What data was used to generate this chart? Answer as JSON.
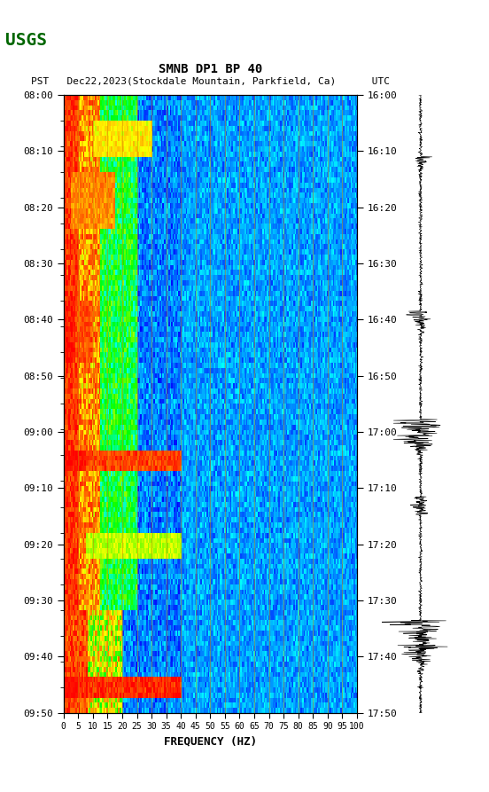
{
  "title_line1": "SMNB DP1 BP 40",
  "title_line2": "PST   Dec22,2023(Stockdale Mountain, Parkfield, Ca)      UTC",
  "xlabel": "FREQUENCY (HZ)",
  "freq_ticks": [
    0,
    5,
    10,
    15,
    20,
    25,
    30,
    35,
    40,
    45,
    50,
    55,
    60,
    65,
    70,
    75,
    80,
    85,
    90,
    95,
    100
  ],
  "left_yticks_labels": [
    "08:00",
    "08:10",
    "08:20",
    "08:30",
    "08:40",
    "08:50",
    "09:00",
    "09:10",
    "09:20",
    "09:30",
    "09:40",
    "09:50"
  ],
  "right_yticks_labels": [
    "16:00",
    "16:10",
    "16:20",
    "16:30",
    "16:40",
    "16:50",
    "17:00",
    "17:10",
    "17:20",
    "17:30",
    "17:40",
    "17:50"
  ],
  "freq_min": 0,
  "freq_max": 100,
  "time_steps": 120,
  "freq_steps": 200,
  "vertical_line_freqs": [
    5,
    10,
    15,
    20,
    25,
    30,
    35,
    40,
    45,
    50,
    55,
    60,
    65,
    70,
    75,
    80,
    85,
    90,
    95
  ],
  "background_color": "#ffffff",
  "spectrogram_bg": "#0000aa",
  "fig_width": 5.52,
  "fig_height": 8.93
}
